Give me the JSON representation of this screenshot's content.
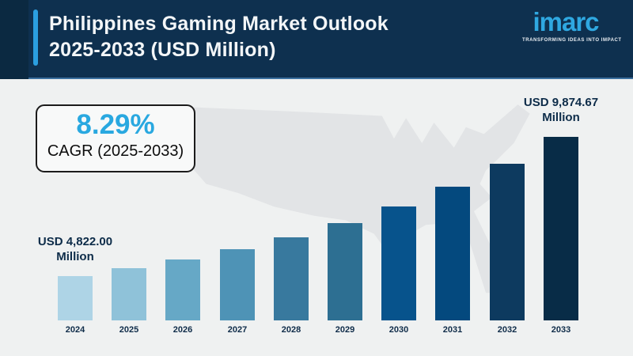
{
  "header": {
    "title_line1": "Philippines Gaming Market Outlook",
    "title_line2": "2025-2033 (USD Million)",
    "logo_wordmark": "imarc",
    "logo_tagline": "TRANSFORMING IDEAS INTO IMPACT"
  },
  "colors": {
    "header_bg": "#0e304f",
    "header_left_strip": "#0b2941",
    "accent_bar": "#2b9fe0",
    "logo_blue": "#2fa8e1",
    "body_bg": "#eff1f1",
    "map_fill": "#e2e4e6",
    "cagr_value_color": "#29a8e0",
    "dark_text": "#0d2c49"
  },
  "cagr_box": {
    "value": "8.29%",
    "label": "CAGR (2025-2033)"
  },
  "value_labels": {
    "start_line1": "USD 4,822.00",
    "start_line2": "Million",
    "end_line1": "USD 9,874.67",
    "end_line2": "Million"
  },
  "chart_data": {
    "type": "bar",
    "title": "Philippines Gaming Market Outlook 2025-2033 (USD Million)",
    "unit": "USD Million",
    "categories": [
      "2024",
      "2025",
      "2026",
      "2027",
      "2028",
      "2029",
      "2030",
      "2031",
      "2032",
      "2033"
    ],
    "values": [
      4822.0,
      5221.77,
      5654.64,
      6123.41,
      6631.04,
      7180.75,
      7776.03,
      8420.62,
      9118.69,
      9874.67
    ],
    "labeled_values": {
      "2024": 4822.0,
      "2033": 9874.67
    },
    "cagr_percent": 8.29,
    "cagr_period": "2025-2033",
    "bar_colors": [
      "#aed4e6",
      "#8fc2d9",
      "#66a8c6",
      "#4e93b6",
      "#38799e",
      "#2d6f92",
      "#07538c",
      "#04497e",
      "#0d3a5f",
      "#082c47"
    ],
    "legend": "none",
    "gridlines": false,
    "y_axis": "hidden (truncated non-zero baseline)",
    "background": "gray USA map silhouette"
  }
}
